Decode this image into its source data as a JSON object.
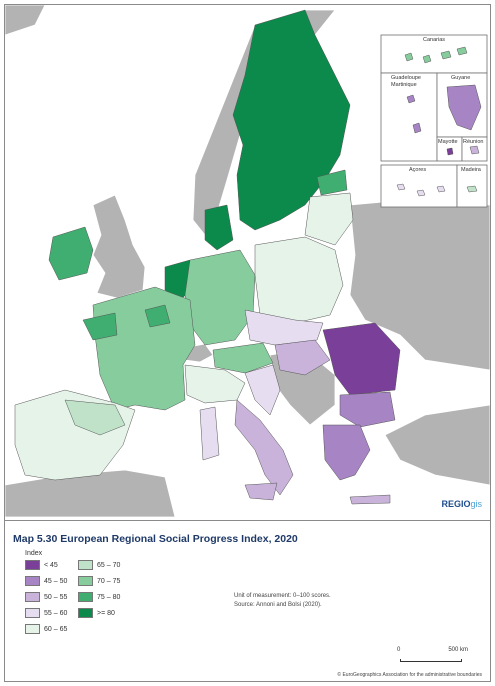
{
  "map": {
    "title": "Map 5.30 European Regional Social Progress Index, 2020",
    "logo": {
      "part1": "REGIO",
      "part2": "gis"
    },
    "insets": {
      "canarias": "Canarias",
      "guadeloupe": "Guadeloupe",
      "martinique": "Martinique",
      "guyane": "Guyane",
      "mayotte": "Mayotte",
      "reunion": "Réunion",
      "acores": "Açores",
      "madeira": "Madeira"
    },
    "colors": {
      "sea": "#ffffff",
      "non_eu": "#b3b3b3",
      "no_data": "#a6a6a6",
      "border": "#555555"
    }
  },
  "legend": {
    "title": "Index",
    "items": [
      {
        "label": "< 45",
        "color": "#7a3f98"
      },
      {
        "label": "45 – 50",
        "color": "#a784c4"
      },
      {
        "label": "50 – 55",
        "color": "#c9b3da"
      },
      {
        "label": "55 – 60",
        "color": "#e6def0"
      },
      {
        "label": "60 – 65",
        "color": "#e5f3e9"
      },
      {
        "label": "65 – 70",
        "color": "#bfe2c9"
      },
      {
        "label": "70 – 75",
        "color": "#86cc9d"
      },
      {
        "label": ">= 80",
        "color": "#0b8a4b"
      },
      {
        "label": "75 – 80",
        "color": "#3fae70"
      }
    ]
  },
  "note": {
    "unit": "Unit of measurement: 0–100 scores.",
    "source": "Source: Annoni and Bolsi (2020)."
  },
  "scale": {
    "zero": "0",
    "max": "500 km"
  },
  "copyright": "© EuroGeographics Association for the administrative boundaries"
}
